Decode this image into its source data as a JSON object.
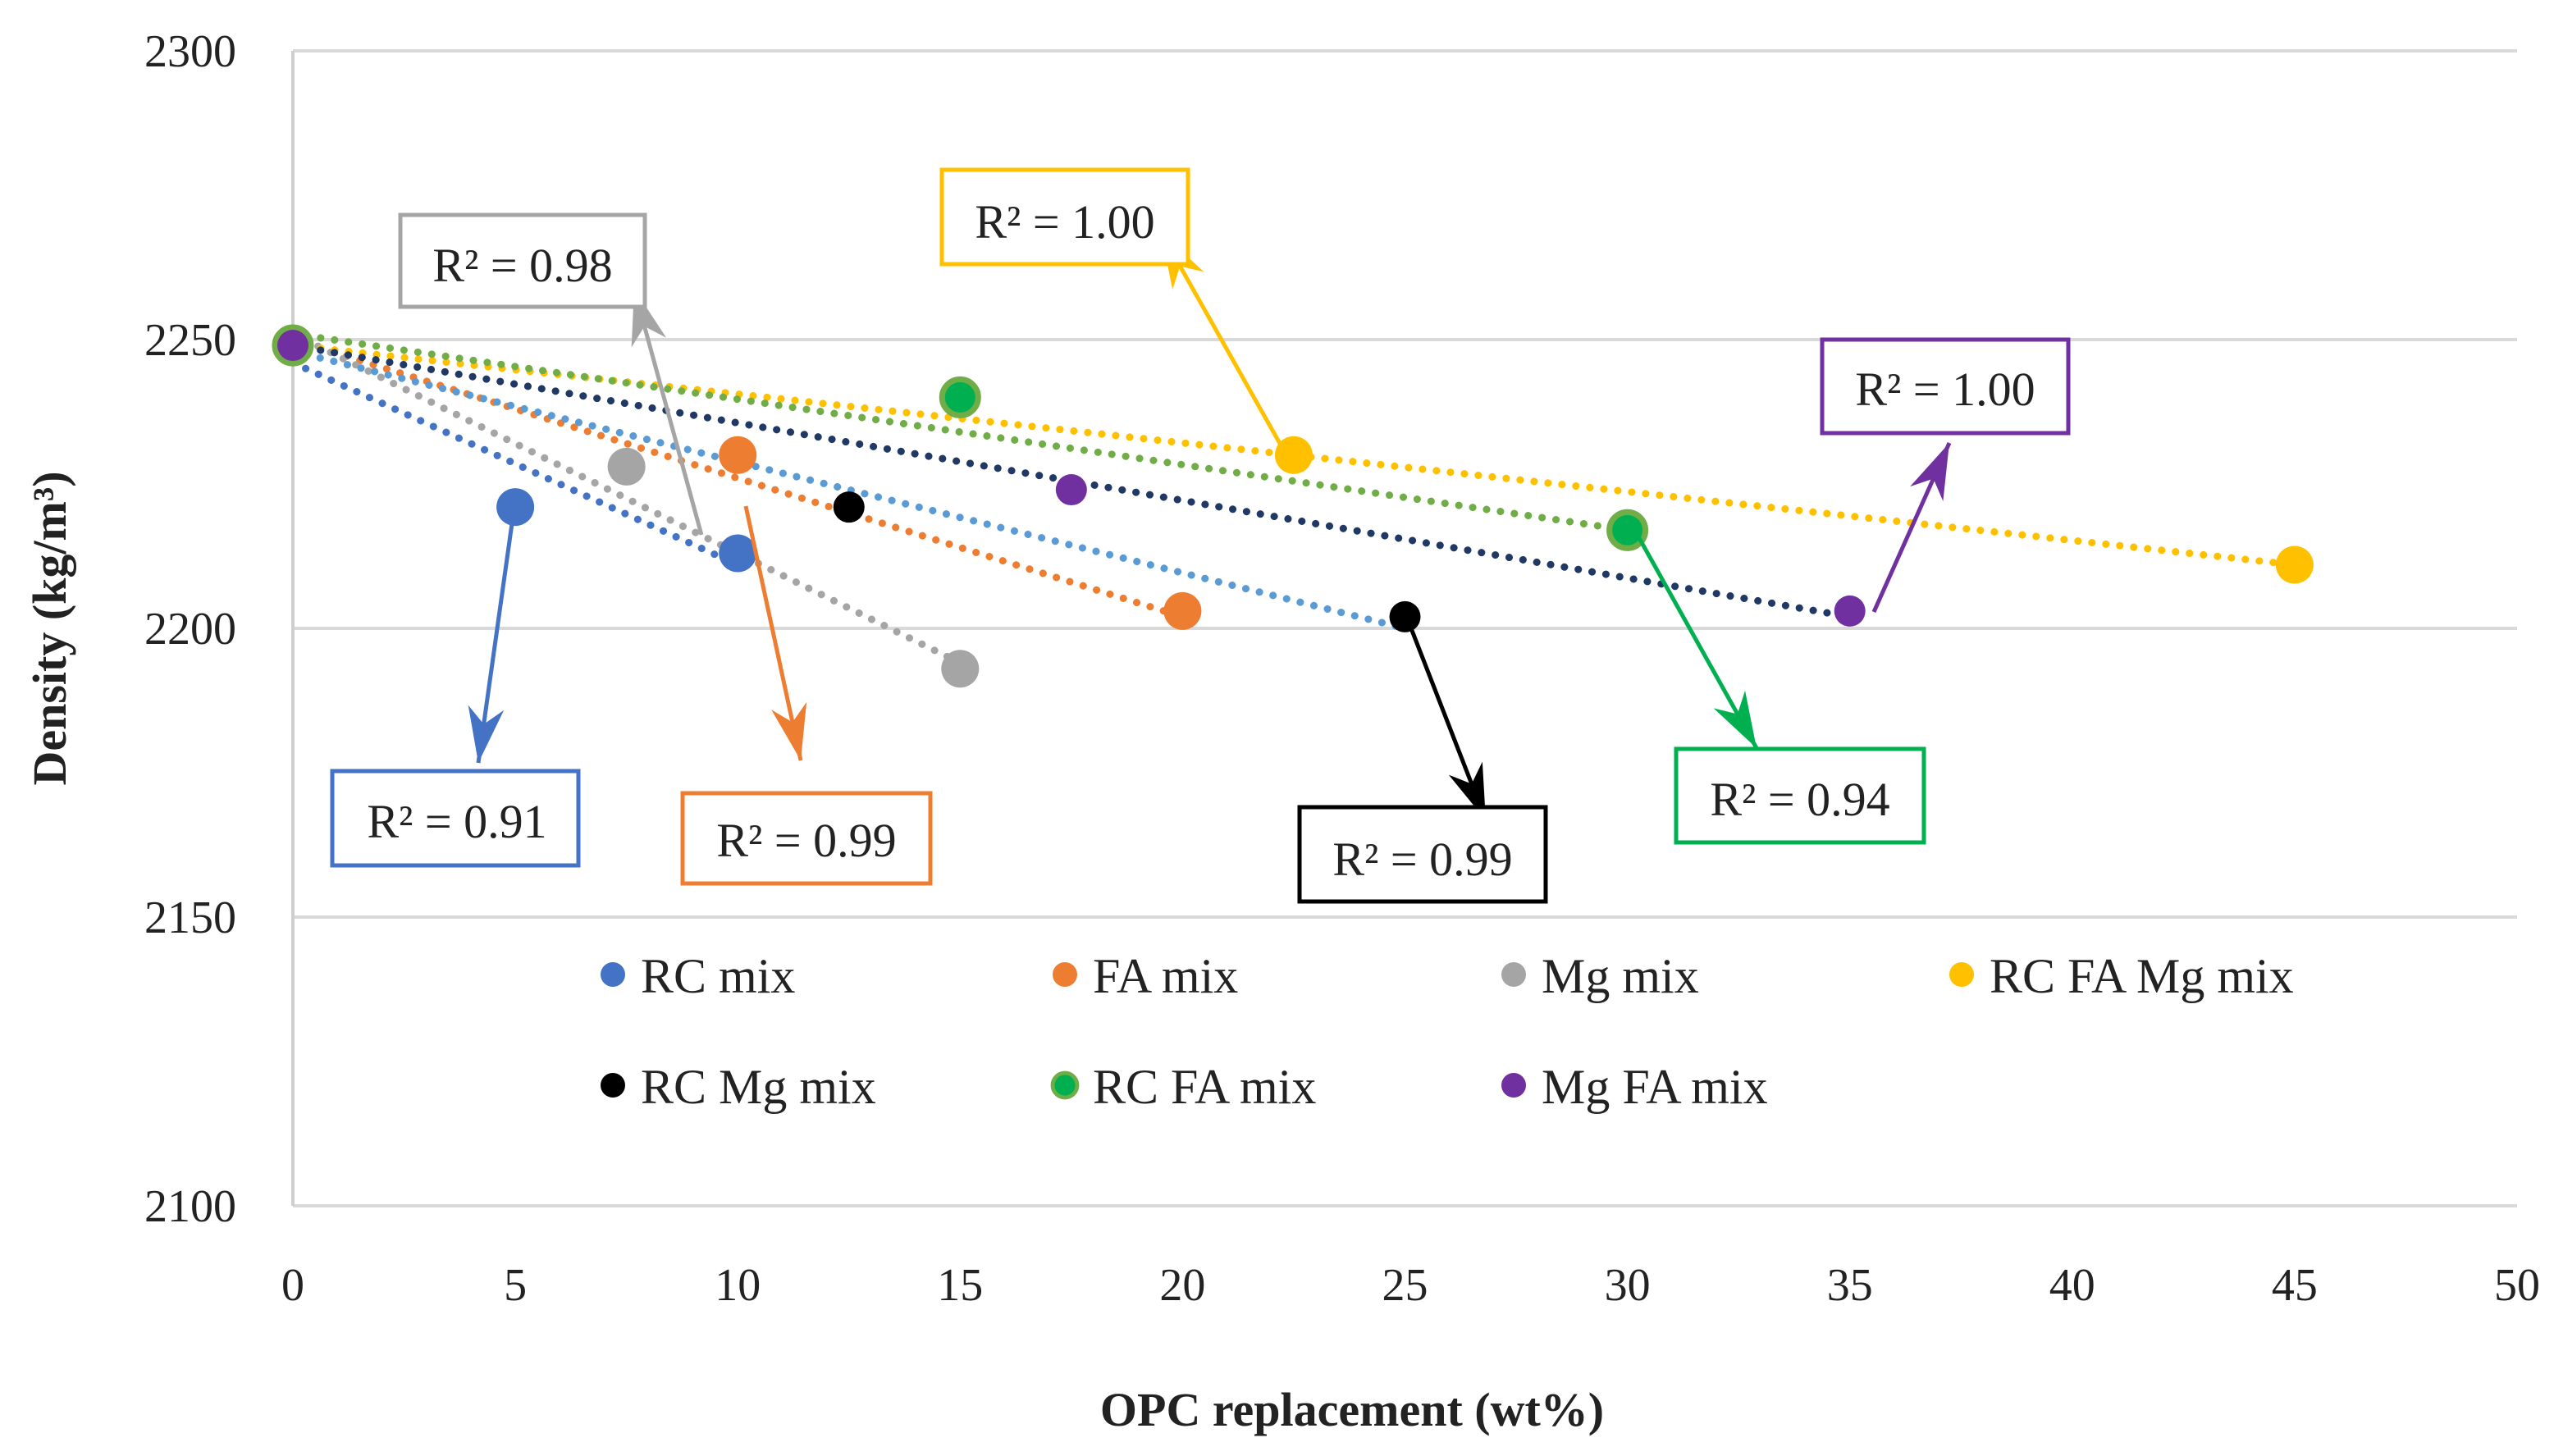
{
  "chart_data": {
    "type": "scatter",
    "title": "",
    "xlabel": "OPC replacement (wt%)",
    "ylabel": "Density (kg/m³)",
    "xlim": [
      0,
      50
    ],
    "ylim": [
      2100,
      2300
    ],
    "x_ticks": [
      "0",
      "5",
      "10",
      "15",
      "20",
      "25",
      "30",
      "35",
      "40",
      "45",
      "50"
    ],
    "y_ticks": [
      "2100",
      "2150",
      "2200",
      "2250",
      "2300"
    ],
    "grid": "horizontal",
    "legend_position": "inside-bottom",
    "series": [
      {
        "name": "RC mix",
        "color": "#4472C4",
        "trend_color": "#4472C4",
        "x": [
          0,
          5,
          10
        ],
        "y": [
          2249,
          2221,
          2213
        ],
        "trendline": {
          "x": [
            0,
            10
          ],
          "y": [
            2246,
            2211
          ]
        },
        "r2_label": "R² = 0.91"
      },
      {
        "name": "FA mix",
        "color": "#ED7D31",
        "trend_color": "#ED7D31",
        "x": [
          0,
          10,
          20
        ],
        "y": [
          2249,
          2230,
          2203
        ],
        "trendline": {
          "x": [
            0,
            20
          ],
          "y": [
            2250,
            2202
          ]
        },
        "r2_label": "R² = 0.99"
      },
      {
        "name": "Mg mix",
        "color": "#A5A5A5",
        "trend_color": "#A5A5A5",
        "x": [
          0,
          7.5,
          15
        ],
        "y": [
          2249,
          2228,
          2193
        ],
        "trendline": {
          "x": [
            0,
            15
          ],
          "y": [
            2251,
            2194
          ]
        },
        "r2_label": "R² = 0.98"
      },
      {
        "name": "RC FA Mg mix",
        "color": "#FFC000",
        "trend_color": "#FFC000",
        "x": [
          0,
          22.5,
          45
        ],
        "y": [
          2249,
          2230,
          2211
        ],
        "trendline": {
          "x": [
            0,
            45
          ],
          "y": [
            2249,
            2211
          ]
        },
        "r2_label": "R² = 1.00"
      },
      {
        "name": "RC Mg mix",
        "color": "#000000",
        "trend_color": "#5B9BD5",
        "x": [
          0,
          12.5,
          25
        ],
        "y": [
          2249,
          2221,
          2202
        ],
        "trendline": {
          "x": [
            0,
            25
          ],
          "y": [
            2248,
            2200
          ]
        },
        "r2_label": "R² = 0.99"
      },
      {
        "name": "RC FA mix",
        "color": "#70AD47",
        "inner_color": "#00B050",
        "trend_color": "#70AD47",
        "x": [
          0,
          15,
          30
        ],
        "y": [
          2249,
          2240,
          2217
        ],
        "trendline": {
          "x": [
            0,
            30
          ],
          "y": [
            2251,
            2217
          ]
        },
        "r2_label": "R² = 0.94"
      },
      {
        "name": "Mg FA mix",
        "color": "#7030A0",
        "trend_color": "#203864",
        "x": [
          0,
          17.5,
          35
        ],
        "y": [
          2249,
          2224,
          2203
        ],
        "trendline": {
          "x": [
            0,
            35
          ],
          "y": [
            2249,
            2202
          ]
        },
        "r2_label": "R² = 1.00"
      }
    ]
  }
}
